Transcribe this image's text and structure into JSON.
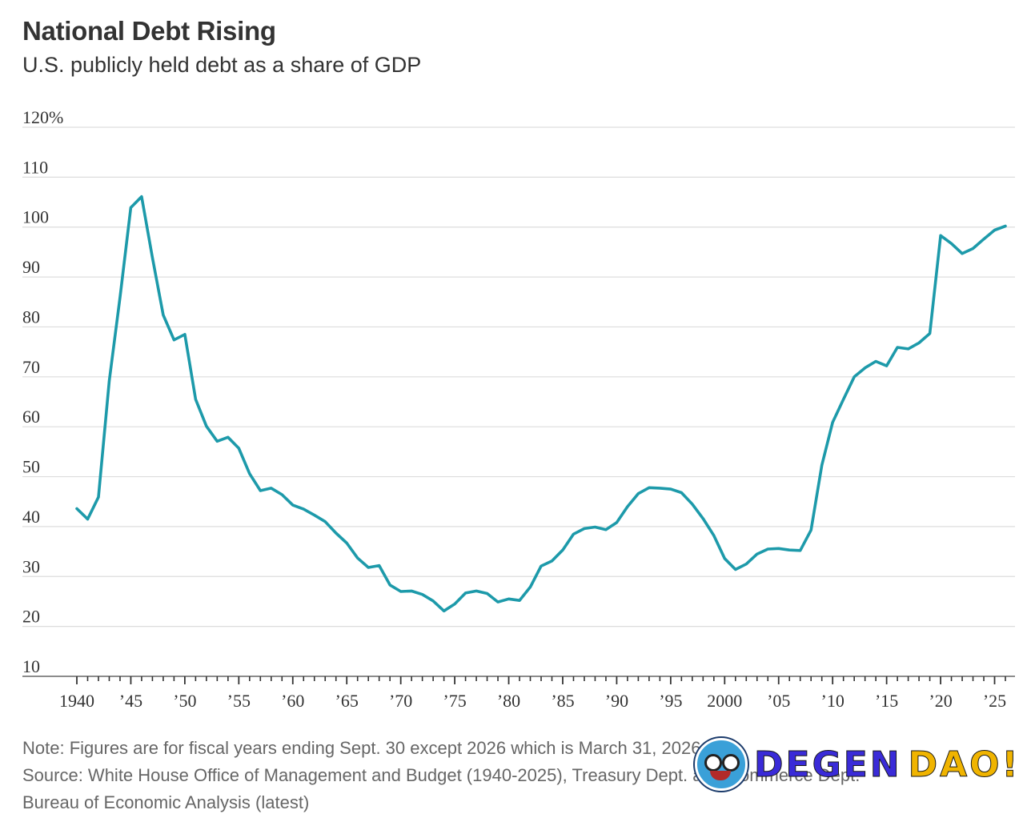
{
  "header": {
    "title": "National Debt Rising",
    "subtitle": "U.S. publicly held debt as a share of GDP"
  },
  "footer": {
    "note": "Note: Figures are for fiscal years ending Sept. 30 except 2026 which is March 31, 2026",
    "source_line1": "Source: White House Office of Management and Budget (1940-2025), Treasury Dept. and Commerce Dept.",
    "source_line2": "Bureau of Economic Analysis (latest)"
  },
  "watermark": {
    "text_a": "DEGEN",
    "text_b": "DAO!",
    "icon": "cartoon-face-icon"
  },
  "chart_data": {
    "type": "line",
    "title": "National Debt Rising",
    "subtitle": "U.S. publicly held debt as a share of GDP",
    "xlabel": "",
    "ylabel": "",
    "ylim": [
      10,
      120
    ],
    "xlim": [
      1940,
      2026
    ],
    "yticks": [
      10,
      20,
      30,
      40,
      50,
      60,
      70,
      80,
      90,
      100,
      110,
      120
    ],
    "ytick_labels": [
      "10",
      "20",
      "30",
      "40",
      "50",
      "60",
      "70",
      "80",
      "90",
      "100",
      "110",
      "120%"
    ],
    "xticks": [
      1940,
      1945,
      1950,
      1955,
      1960,
      1965,
      1970,
      1975,
      1980,
      1985,
      1990,
      1995,
      2000,
      2005,
      2010,
      2015,
      2020,
      2025
    ],
    "xtick_labels": [
      "1940",
      "’45",
      "’50",
      "’55",
      "’60",
      "’65",
      "’70",
      "’75",
      "’80",
      "’85",
      "’90",
      "’95",
      "2000",
      "’05",
      "’10",
      "’15",
      "’20",
      "’25"
    ],
    "grid": true,
    "color": "#1d9aaa",
    "series": [
      {
        "x": [
          1940,
          1941,
          1942,
          1943,
          1944,
          1945,
          1946,
          1947,
          1948,
          1949,
          1950,
          1951,
          1952,
          1953,
          1954,
          1955,
          1956,
          1957,
          1958,
          1959,
          1960,
          1961,
          1962,
          1963,
          1964,
          1965,
          1966,
          1967,
          1968,
          1969,
          1970,
          1971,
          1972,
          1973,
          1974,
          1975,
          1976,
          1977,
          1978,
          1979,
          1980,
          1981,
          1982,
          1983,
          1984,
          1985,
          1986,
          1987,
          1988,
          1989,
          1990,
          1991,
          1992,
          1993,
          1994,
          1995,
          1996,
          1997,
          1998,
          1999,
          2000,
          2001,
          2002,
          2003,
          2004,
          2005,
          2006,
          2007,
          2008,
          2009,
          2010,
          2011,
          2012,
          2013,
          2014,
          2015,
          2016,
          2017,
          2018,
          2019,
          2020,
          2021,
          2022,
          2023,
          2024,
          2025,
          2026
        ],
        "y": [
          43.6,
          41.5,
          45.9,
          69.2,
          86.0,
          103.9,
          106.1,
          93.9,
          82.4,
          77.4,
          78.5,
          65.5,
          60.1,
          57.1,
          57.9,
          55.7,
          50.6,
          47.2,
          47.7,
          46.4,
          44.3,
          43.5,
          42.3,
          41.0,
          38.7,
          36.7,
          33.7,
          31.8,
          32.2,
          28.3,
          27.0,
          27.1,
          26.4,
          25.1,
          23.1,
          24.5,
          26.7,
          27.1,
          26.6,
          24.9,
          25.5,
          25.2,
          27.9,
          32.1,
          33.1,
          35.3,
          38.5,
          39.6,
          39.9,
          39.4,
          40.8,
          44.0,
          46.6,
          47.8,
          47.7,
          47.5,
          46.8,
          44.5,
          41.6,
          38.2,
          33.6,
          31.4,
          32.5,
          34.5,
          35.5,
          35.6,
          35.3,
          35.2,
          39.3,
          52.3,
          60.9,
          65.5,
          70.0,
          71.8,
          73.1,
          72.2,
          75.9,
          75.6,
          76.8,
          78.7,
          98.3,
          96.7,
          94.7,
          95.7,
          97.6,
          99.4,
          100.2
        ]
      }
    ]
  }
}
